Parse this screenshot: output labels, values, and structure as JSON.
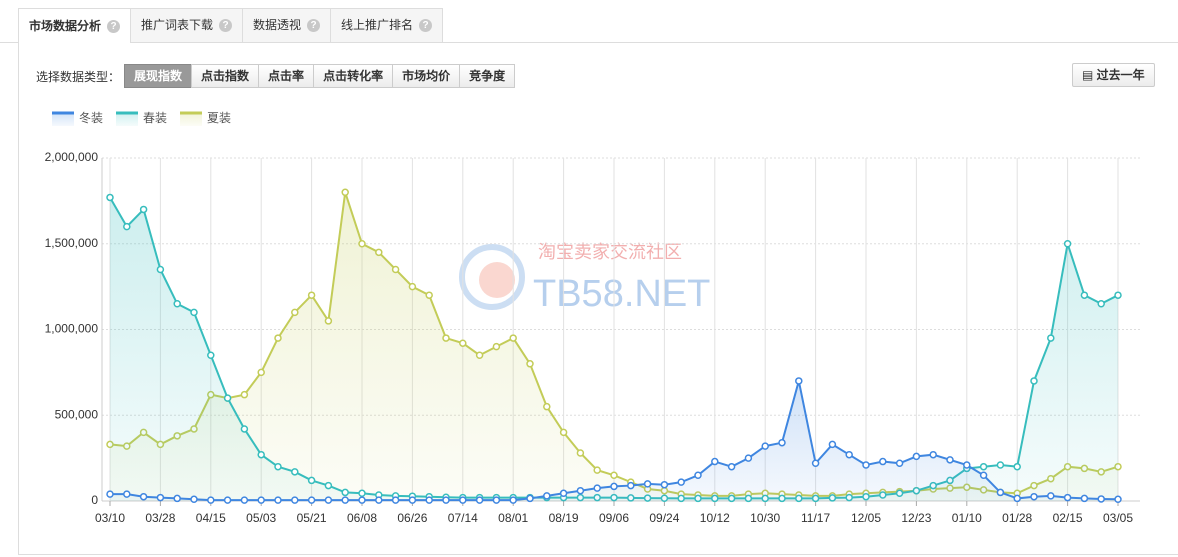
{
  "tabs": [
    "市场数据分析",
    "推广词表下载",
    "数据透视",
    "线上推广排名"
  ],
  "data_type_label": "选择数据类型：",
  "data_types": [
    "展现指数",
    "点击指数",
    "点击率",
    "点击转化率",
    "市场均价",
    "竞争度"
  ],
  "period_button": "过去一年",
  "watermark": [
    "淘宝卖家交流社区",
    "TB58.NET"
  ],
  "chart_data": {
    "type": "line",
    "categories": [
      "03/10",
      null,
      null,
      "03/28",
      null,
      null,
      "04/15",
      null,
      null,
      "05/03",
      null,
      null,
      "05/21",
      null,
      null,
      "06/08",
      null,
      null,
      "06/26",
      null,
      null,
      "07/14",
      null,
      null,
      "08/01",
      null,
      null,
      "08/19",
      null,
      null,
      "09/06",
      null,
      null,
      "09/24",
      null,
      null,
      "10/12",
      null,
      null,
      "10/30",
      null,
      null,
      "11/17",
      null,
      null,
      "12/05",
      null,
      null,
      "12/23",
      null,
      null,
      "01/10",
      null,
      null,
      "01/28",
      null,
      null,
      "02/15",
      null,
      null,
      "03/05"
    ],
    "series": [
      {
        "name": "冬装",
        "color": "#3f86e0",
        "values": [
          40000,
          40000,
          25000,
          20000,
          15000,
          10000,
          5000,
          5000,
          5000,
          5000,
          5000,
          5000,
          5000,
          5000,
          5000,
          5000,
          5000,
          5000,
          5000,
          5000,
          5000,
          5000,
          5000,
          5000,
          5000,
          15000,
          30000,
          45000,
          60000,
          75000,
          85000,
          90000,
          100000,
          95000,
          110000,
          150000,
          230000,
          200000,
          250000,
          320000,
          340000,
          700000,
          220000,
          330000,
          270000,
          210000,
          230000,
          220000,
          260000,
          270000,
          240000,
          210000,
          150000,
          50000,
          15000,
          25000,
          30000,
          20000,
          15000,
          12000,
          10000
        ]
      },
      {
        "name": "春装",
        "color": "#37bdbd",
        "values": [
          1770000,
          1600000,
          1700000,
          1350000,
          1150000,
          1100000,
          850000,
          600000,
          420000,
          270000,
          200000,
          170000,
          120000,
          90000,
          50000,
          45000,
          35000,
          30000,
          28000,
          25000,
          22000,
          20000,
          20000,
          20000,
          20000,
          20000,
          20000,
          20000,
          20000,
          20000,
          20000,
          18000,
          17000,
          16000,
          15000,
          15000,
          15000,
          15000,
          15000,
          15000,
          15000,
          15000,
          15000,
          18000,
          20000,
          25000,
          35000,
          45000,
          60000,
          90000,
          120000,
          190000,
          200000,
          210000,
          200000,
          700000,
          950000,
          1500000,
          1200000,
          1150000,
          1200000
        ]
      },
      {
        "name": "夏装",
        "color": "#c3cc58",
        "values": [
          330000,
          320000,
          400000,
          330000,
          380000,
          420000,
          620000,
          600000,
          620000,
          750000,
          950000,
          1100000,
          1200000,
          1050000,
          1800000,
          1500000,
          1450000,
          1350000,
          1250000,
          1200000,
          950000,
          920000,
          850000,
          900000,
          950000,
          800000,
          550000,
          400000,
          280000,
          180000,
          150000,
          110000,
          70000,
          60000,
          40000,
          35000,
          30000,
          30000,
          40000,
          45000,
          40000,
          35000,
          30000,
          30000,
          40000,
          45000,
          50000,
          55000,
          60000,
          70000,
          75000,
          80000,
          65000,
          50000,
          45000,
          90000,
          130000,
          200000,
          190000,
          170000,
          200000
        ]
      }
    ],
    "ylim": [
      0,
      2000000
    ],
    "yticks": [
      0,
      {
        "value": 500000,
        "label": "500,000"
      },
      {
        "value": 1000000,
        "label": "1,000,000"
      },
      {
        "value": 1500000,
        "label": "1,500,000"
      },
      {
        "value": 2000000,
        "label": "2,000,000"
      }
    ],
    "grid": true,
    "legend": "top-left"
  }
}
